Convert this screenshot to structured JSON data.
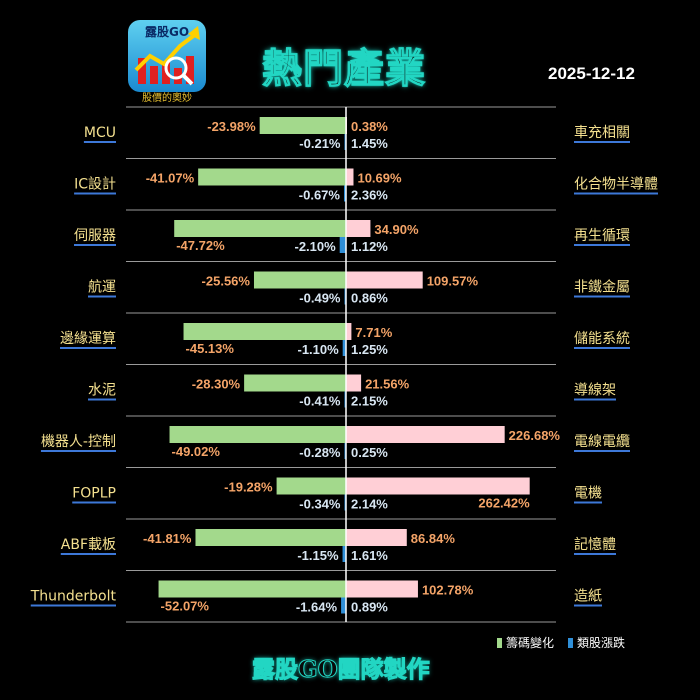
{
  "header": {
    "logo_text": "露股GO",
    "logo_caption": "股價的奧妙",
    "title": "熱門產業",
    "date": "2025-12-12"
  },
  "legend": {
    "chip_label": "籌碼變化",
    "price_label": "類股漲跌"
  },
  "footer": "露股GO團隊製作",
  "colors": {
    "green_bar": "#a3d98c",
    "blue_bar": "#2f8fd8",
    "pink_bar": "#ffcfd6",
    "left_label": "#f4e08f",
    "negative_text": "#f4a468",
    "accent": "#22d6c3"
  },
  "chart_data": {
    "type": "bar",
    "orientation": "horizontal-butterfly",
    "left": {
      "categories": [
        "MCU",
        "IC設計",
        "伺服器",
        "航運",
        "邊緣運算",
        "水泥",
        "機器人-控制",
        "FOPLP",
        "ABF載板",
        "Thunderbolt"
      ],
      "series": [
        {
          "name": "籌碼變化",
          "values": [
            -23.98,
            -41.07,
            -47.72,
            -25.56,
            -45.13,
            -28.3,
            -49.02,
            -19.28,
            -41.81,
            -52.07
          ],
          "labels": [
            "-23.98%",
            "-41.07%",
            "-47.72%",
            "-25.56%",
            "-45.13%",
            "-28.30%",
            "-49.02%",
            "-19.28%",
            "-41.81%",
            "-52.07%"
          ]
        },
        {
          "name": "類股漲跌",
          "values": [
            -0.21,
            -0.67,
            -2.1,
            -0.49,
            -1.1,
            -0.41,
            -0.28,
            -0.34,
            -1.15,
            -1.64
          ],
          "labels": [
            "-0.21%",
            "-0.67%",
            "-2.10%",
            "-0.49%",
            "-1.10%",
            "-0.41%",
            "-0.28%",
            "-0.34%",
            "-1.15%",
            "-1.64%"
          ]
        }
      ]
    },
    "right": {
      "categories": [
        "車充相關",
        "化合物半導體",
        "再生循環",
        "非鐵金屬",
        "儲能系統",
        "導線架",
        "電線電纜",
        "電機",
        "記憶體",
        "造紙"
      ],
      "series": [
        {
          "name": "籌碼變化",
          "values": [
            0.38,
            10.69,
            34.9,
            109.57,
            7.71,
            21.56,
            226.68,
            262.42,
            86.84,
            102.78
          ],
          "labels": [
            "0.38%",
            "10.69%",
            "34.90%",
            "109.57%",
            "7.71%",
            "21.56%",
            "226.68%",
            "262.42%",
            "86.84%",
            "102.78%"
          ]
        },
        {
          "name": "類股漲跌",
          "values": [
            1.45,
            2.36,
            1.12,
            0.86,
            1.25,
            2.15,
            0.25,
            2.14,
            1.61,
            0.89
          ],
          "labels": [
            "1.45%",
            "2.36%",
            "1.12%",
            "0.86%",
            "1.25%",
            "2.15%",
            "0.25%",
            "2.14%",
            "1.61%",
            "0.89%"
          ]
        }
      ]
    }
  }
}
